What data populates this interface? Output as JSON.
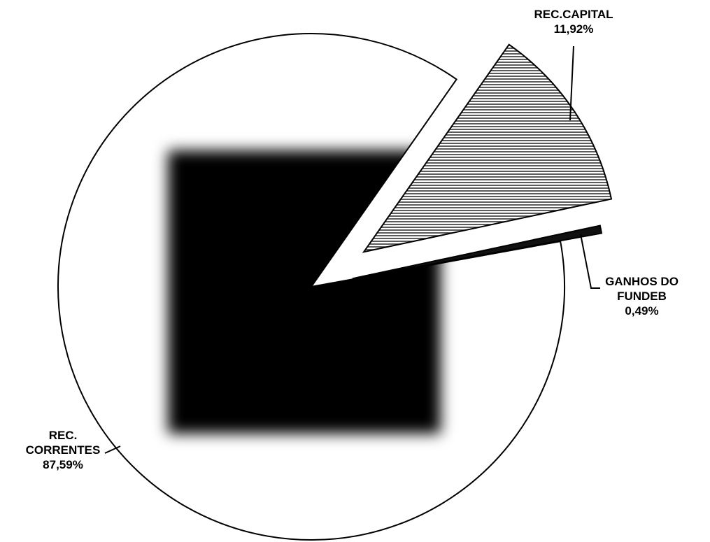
{
  "chart_data": {
    "type": "pie",
    "categories": [
      "REC. CORRENTES",
      "REC.CAPITAL",
      "GANHOS DO FUNDEB"
    ],
    "values": [
      87.59,
      11.92,
      0.49
    ],
    "value_labels": [
      "87,59%",
      "11,92%",
      "0,49%"
    ],
    "colors": [
      "#ffffff",
      "#333333",
      "#111111"
    ],
    "hatch": [
      false,
      true,
      false
    ]
  }
}
